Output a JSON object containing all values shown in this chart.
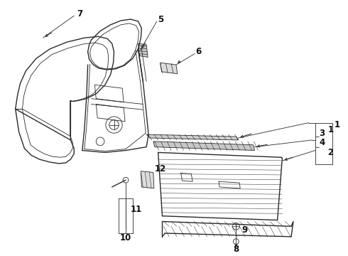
{
  "background_color": "#ffffff",
  "line_color": "#2a2a2a",
  "label_color": "#111111",
  "figsize": [
    4.9,
    3.6
  ],
  "dpi": 100,
  "label_fontsize": 8.5
}
